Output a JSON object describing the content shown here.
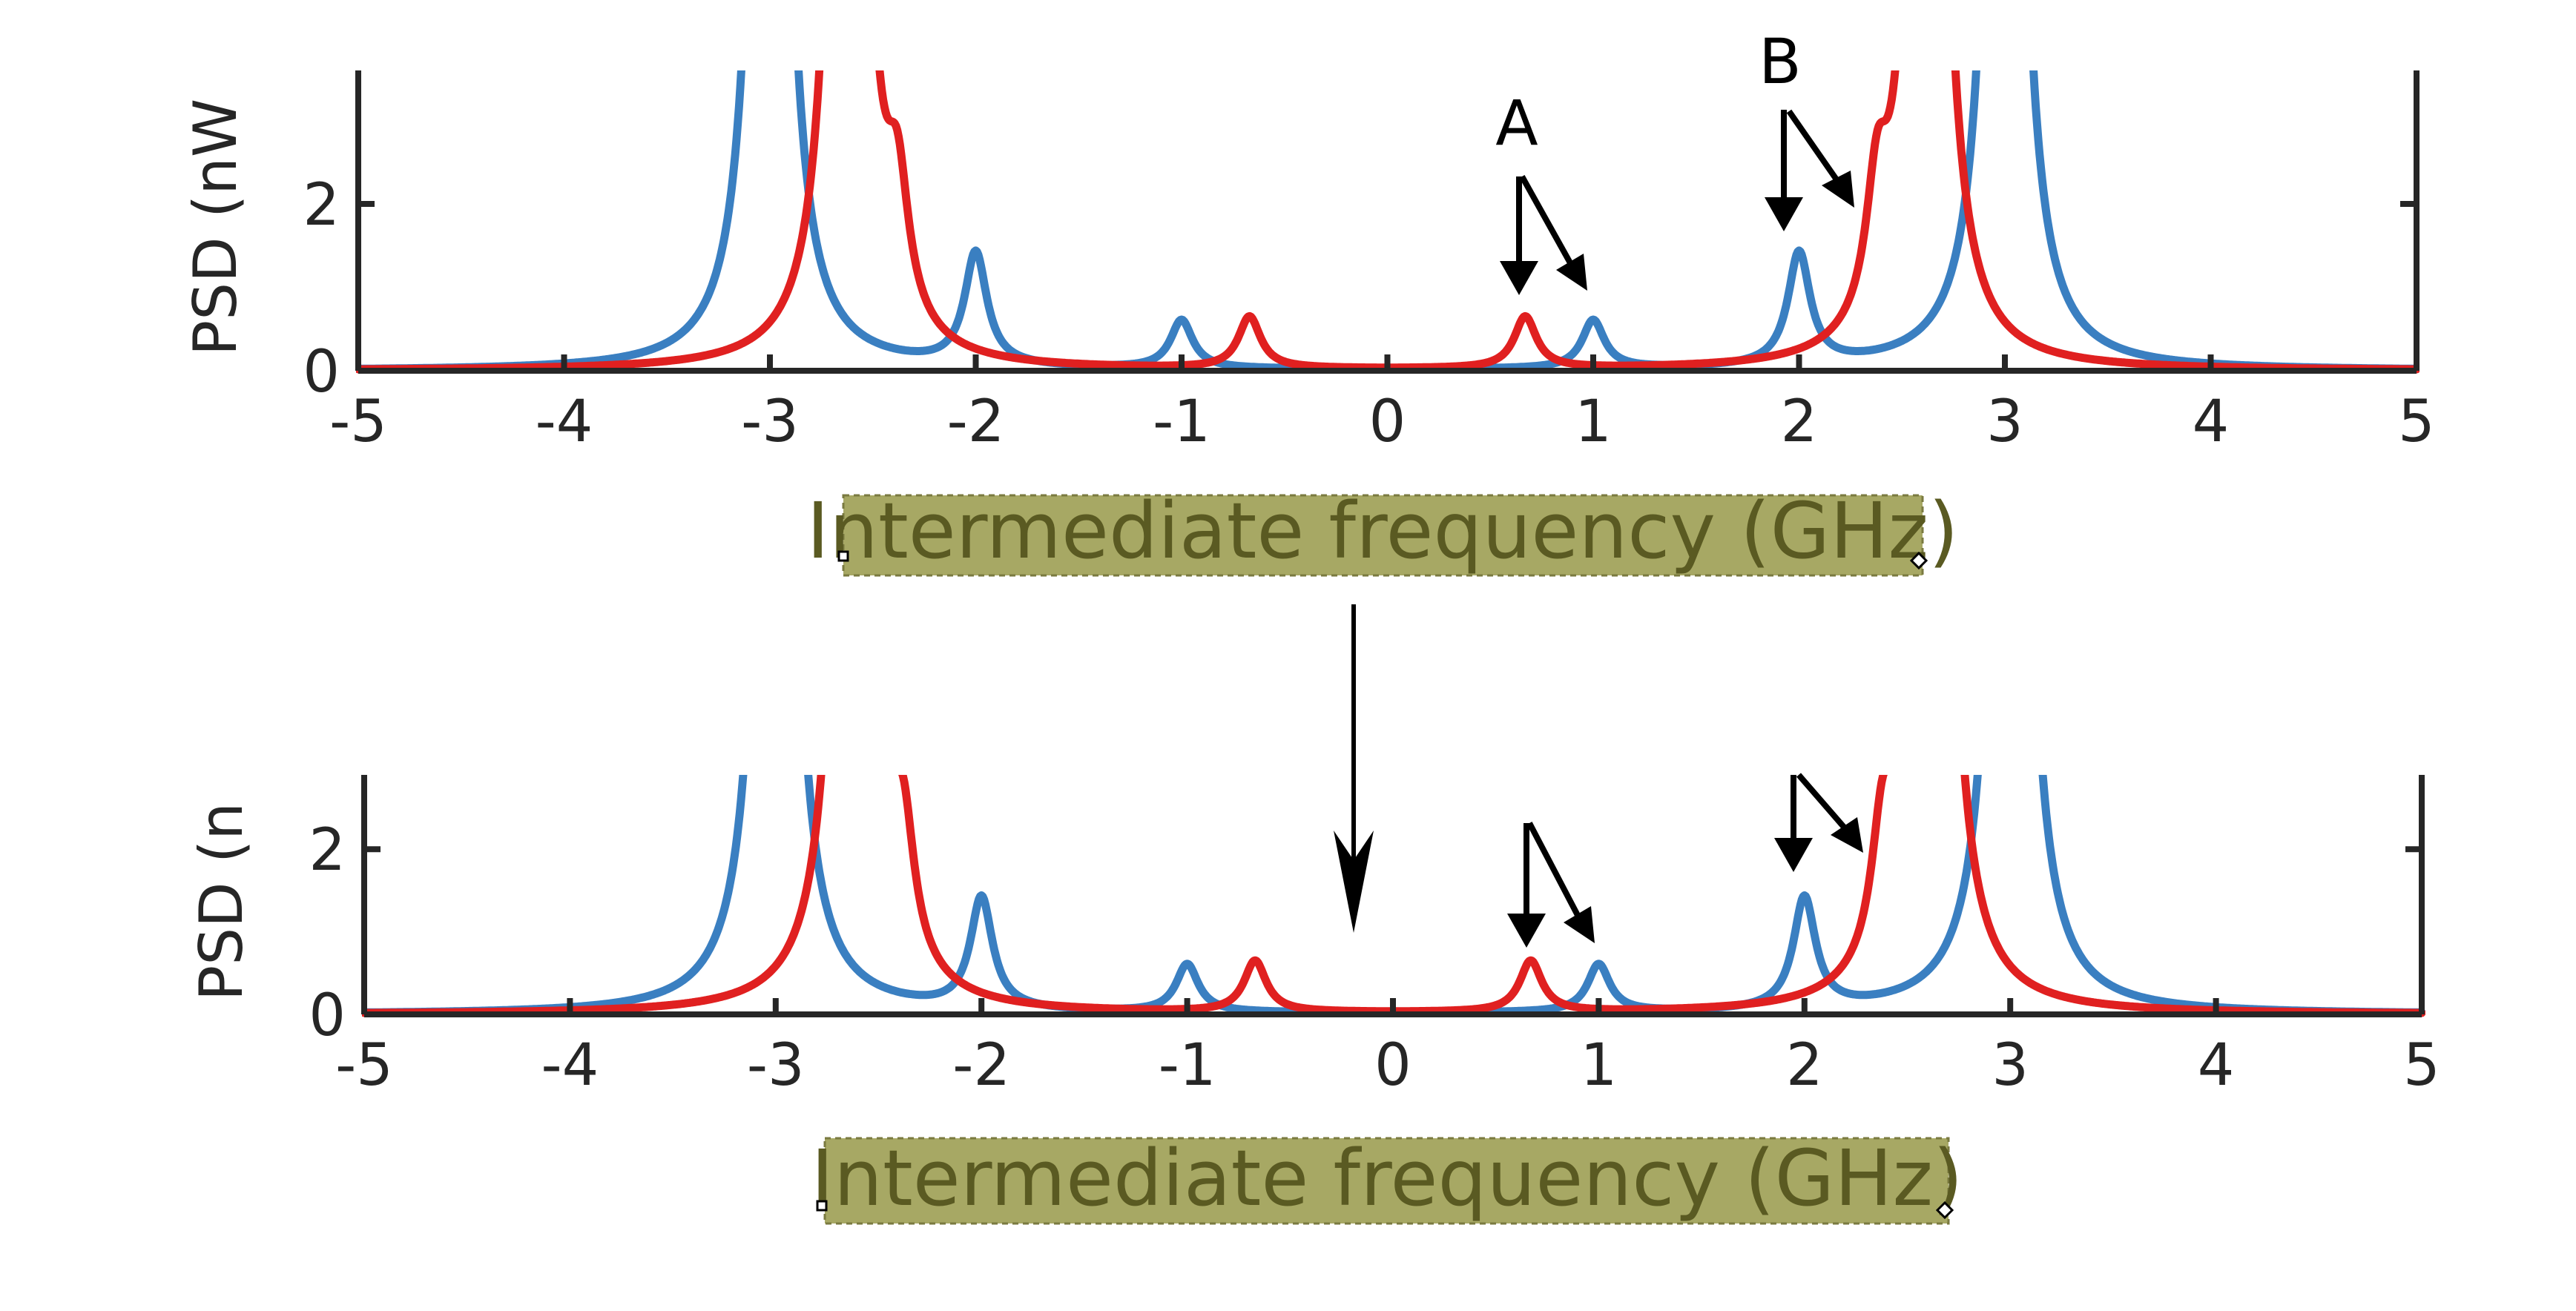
{
  "chart_data": [
    {
      "type": "line",
      "xlabel": "Intermediate frequency (GHz)",
      "ylabel": "PSD (nW",
      "xlim": [
        -5,
        5
      ],
      "ylim": [
        0,
        3.6
      ],
      "xticks": [
        -5,
        -4,
        -3,
        -2,
        -1,
        0,
        1,
        2,
        3,
        4,
        5
      ],
      "xtick_labels": [
        "-5",
        "-4",
        "-3",
        "-2",
        "-1",
        "0",
        "1",
        "2",
        "3",
        "4",
        "5"
      ],
      "yticks": [
        0,
        2
      ],
      "ytick_labels": [
        "0",
        "2"
      ],
      "series": [
        {
          "color": "#3a7fc1",
          "peaks": [
            {
              "x": -3.0,
              "y": 20.0
            },
            {
              "x": -2.0,
              "y": 1.35
            },
            {
              "x": -1.0,
              "y": 0.58
            },
            {
              "x": 1.0,
              "y": 0.58
            },
            {
              "x": 2.0,
              "y": 1.35
            },
            {
              "x": 3.0,
              "y": 20.0
            }
          ]
        },
        {
          "color": "#e02020",
          "peaks": [
            {
              "x": -2.62,
              "y": 20.0
            },
            {
              "x": -2.38,
              "y": 1.5
            },
            {
              "x": -0.67,
              "y": 0.62
            },
            {
              "x": 0.67,
              "y": 0.62
            },
            {
              "x": 2.38,
              "y": 1.5
            },
            {
              "x": 2.62,
              "y": 20.0
            }
          ]
        }
      ],
      "annotations": [
        {
          "text": "A",
          "x": 0.67
        },
        {
          "text": "B",
          "x": 2.0
        }
      ]
    },
    {
      "type": "line",
      "xlabel": "Intermediate frequency (GHz)",
      "ylabel": "PSD (n",
      "xlim": [
        -5,
        5
      ],
      "ylim": [
        0,
        2.9
      ],
      "xticks": [
        -5,
        -4,
        -3,
        -2,
        -1,
        0,
        1,
        2,
        3,
        4,
        5
      ],
      "xtick_labels": [
        "-5",
        "-4",
        "-3",
        "-2",
        "-1",
        "0",
        "1",
        "2",
        "3",
        "4",
        "5"
      ],
      "yticks": [
        0,
        2
      ],
      "ytick_labels": [
        "0",
        "2"
      ],
      "series": [
        {
          "color": "#3a7fc1",
          "peaks": [
            {
              "x": -3.0,
              "y": 20.0
            },
            {
              "x": -2.0,
              "y": 1.35
            },
            {
              "x": -1.0,
              "y": 0.58
            },
            {
              "x": 1.0,
              "y": 0.58
            },
            {
              "x": 2.0,
              "y": 1.35
            },
            {
              "x": 3.0,
              "y": 20.0
            }
          ]
        },
        {
          "color": "#e02020",
          "peaks": [
            {
              "x": -2.62,
              "y": 20.0
            },
            {
              "x": -2.38,
              "y": 1.5
            },
            {
              "x": -0.67,
              "y": 0.62
            },
            {
              "x": 0.67,
              "y": 0.62
            },
            {
              "x": 2.38,
              "y": 1.5
            },
            {
              "x": 2.62,
              "y": 20.0
            }
          ]
        }
      ],
      "annotations": [
        {
          "text": "A",
          "x": 0.67
        }
      ]
    }
  ],
  "colors": {
    "axis": "#262626",
    "xlabel_highlight": "#a7a864",
    "xlabel_text": "#5a5a22"
  }
}
